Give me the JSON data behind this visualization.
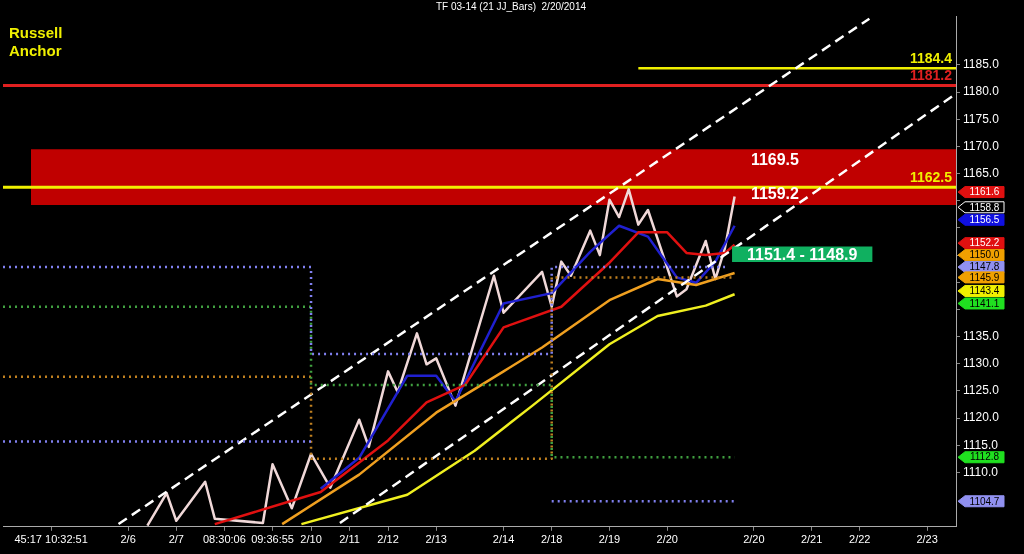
{
  "chart_data": {
    "type": "line",
    "title": "TF 03-14 (21 JJ_Bars)  2/20/2014",
    "marker": "none",
    "grid": false,
    "legend": false,
    "categories": [
      null,
      null,
      null,
      null,
      null,
      "45:17 10:32:51",
      null,
      null,
      null,
      null,
      null,
      null,
      null,
      "2/6",
      null,
      null,
      null,
      null,
      "2/7",
      null,
      null,
      null,
      null,
      "08:30:06",
      null,
      null,
      null,
      null,
      "09:36:55",
      null,
      null,
      null,
      "2/10",
      null,
      null,
      null,
      "2/11",
      null,
      null,
      null,
      "2/12",
      null,
      null,
      null,
      null,
      "2/13",
      null,
      null,
      null,
      null,
      null,
      null,
      "2/14",
      null,
      null,
      null,
      null,
      "2/18",
      null,
      null,
      null,
      null,
      null,
      "2/19",
      null,
      null,
      null,
      null,
      null,
      "2/20",
      null,
      null,
      null,
      null,
      null,
      null,
      null,
      null,
      "2/20",
      null,
      null,
      null,
      null,
      null,
      "2/21",
      null,
      null,
      null,
      null,
      "2/22",
      null,
      null,
      null,
      null,
      null,
      null,
      "2/23",
      null,
      null,
      null
    ],
    "ylim": [
      1100,
      1194
    ],
    "yticks": [
      {
        "value": 1110,
        "label": "1110.0"
      },
      {
        "value": 1115,
        "label": "1115.0"
      },
      {
        "value": 1120,
        "label": "1120.0"
      },
      {
        "value": 1125,
        "label": "1125.0"
      },
      {
        "value": 1130,
        "label": "1130.0"
      },
      {
        "value": 1135,
        "label": "1135.0"
      },
      {
        "value": 1140,
        "label": null
      },
      {
        "value": 1145,
        "label": null
      },
      {
        "value": 1150,
        "label": null
      },
      {
        "value": 1155,
        "label": null
      },
      {
        "value": 1160,
        "label": null
      },
      {
        "value": 1165,
        "label": "1165.0"
      },
      {
        "value": 1170,
        "label": "1170.0"
      },
      {
        "value": 1175,
        "label": "1175.0"
      },
      {
        "value": 1180,
        "label": "1180.0"
      },
      {
        "value": 1185,
        "label": "1185.0"
      }
    ],
    "y2lim": [
      1100,
      1194
    ],
    "y2ticks": [
      1161.6,
      1158.8,
      1156.5,
      1152.2,
      {
        "value": 1150,
        "label": "1150.0"
      },
      1147.8,
      1145.9,
      1143.4,
      1141.1,
      1112.8,
      1104.7
    ],
    "bands": [
      {
        "axis": "y",
        "from": 1159.2,
        "to": 1169.5,
        "color": "#c00000"
      },
      {
        "axis": "y",
        "from": 1148.9,
        "to": 1151.4,
        "label": "1151.4 - 1148.9",
        "color": "#10b060"
      }
    ],
    "ref_lines": [
      {
        "axis": "y",
        "value": 1162.5,
        "label": "1162.5",
        "color": "#f0f000"
      },
      {
        "axis": "y",
        "value": 1181.2,
        "label": "1181.2",
        "color": "#e02020"
      }
    ],
    "series": [
      {
        "type": "step",
        "color": "#8080f0",
        "line_style": "dotted",
        "values": [
          1147.8,
          null,
          null,
          null,
          null,
          null,
          null,
          null,
          null,
          null,
          null,
          null,
          null,
          null,
          null,
          null,
          null,
          null,
          null,
          null,
          null,
          null,
          null,
          null,
          null,
          null,
          null,
          null,
          null,
          null,
          null,
          null,
          1131.8,
          null,
          null,
          null,
          null,
          null,
          null,
          null,
          null,
          null,
          null,
          null,
          null,
          null,
          null,
          null,
          null,
          null,
          null,
          null,
          null,
          null,
          null,
          null,
          null,
          1147.8,
          null,
          null,
          null,
          null,
          null,
          null,
          null,
          null,
          null,
          null,
          null,
          null,
          null,
          null,
          null,
          null,
          null,
          1147.8,
          null,
          null,
          null,
          null,
          null,
          null,
          null,
          null,
          null,
          null,
          null,
          null,
          null,
          null,
          null,
          null,
          null,
          null,
          null,
          null,
          null,
          null,
          null,
          null
        ]
      },
      {
        "type": "step",
        "color": "#8080f0",
        "line_style": "dotted",
        "values": [
          1115.7,
          null,
          null,
          null,
          null,
          null,
          null,
          null,
          null,
          null,
          null,
          null,
          null,
          null,
          null,
          null,
          null,
          null,
          null,
          null,
          null,
          null,
          null,
          null,
          null,
          null,
          null,
          null,
          null,
          null,
          null,
          null,
          1115.7,
          null,
          null,
          null,
          null,
          null,
          null,
          null,
          null,
          null,
          null,
          null,
          null,
          null,
          null,
          null,
          null,
          null,
          null,
          null,
          null,
          null,
          null,
          null,
          null,
          null,
          null,
          null,
          null,
          null,
          null,
          null,
          null,
          null,
          null,
          null,
          null,
          null,
          null,
          null,
          null,
          null,
          null,
          null,
          null,
          null,
          null,
          null,
          null,
          null,
          null,
          null,
          null,
          null,
          null,
          null,
          null,
          null,
          null,
          null,
          null,
          null,
          null,
          null,
          null,
          null,
          null,
          null
        ]
      },
      {
        "type": "step",
        "color": "#8080f0",
        "line_style": "dotted",
        "values": [
          null,
          null,
          null,
          null,
          null,
          null,
          null,
          null,
          null,
          null,
          null,
          null,
          null,
          null,
          null,
          null,
          null,
          null,
          null,
          null,
          null,
          null,
          null,
          null,
          null,
          null,
          null,
          null,
          null,
          null,
          null,
          null,
          null,
          null,
          null,
          null,
          null,
          null,
          null,
          null,
          null,
          null,
          null,
          null,
          null,
          null,
          null,
          null,
          null,
          null,
          null,
          null,
          null,
          null,
          null,
          null,
          null,
          1104.7,
          null,
          null,
          null,
          null,
          null,
          null,
          null,
          null,
          null,
          null,
          null,
          null,
          null,
          null,
          null,
          null,
          null,
          null,
          1104.7,
          null,
          null,
          null,
          null,
          null,
          null,
          null,
          null,
          null,
          null,
          null,
          null,
          null,
          null,
          null,
          null,
          null,
          null,
          null,
          null,
          null,
          null,
          null
        ]
      },
      {
        "type": "step",
        "color": "#40a040",
        "line_style": "dotted",
        "values": [
          1140.5,
          null,
          null,
          null,
          null,
          null,
          null,
          null,
          null,
          null,
          null,
          null,
          null,
          null,
          null,
          null,
          null,
          null,
          null,
          null,
          null,
          null,
          null,
          null,
          null,
          null,
          null,
          null,
          null,
          null,
          null,
          null,
          1126.1,
          null,
          null,
          null,
          null,
          null,
          null,
          null,
          null,
          null,
          null,
          null,
          null,
          null,
          null,
          null,
          null,
          null,
          null,
          null,
          null,
          null,
          null,
          null,
          null,
          1112.8,
          null,
          null,
          null,
          null,
          null,
          null,
          null,
          null,
          null,
          null,
          null,
          null,
          null,
          null,
          null,
          null,
          null,
          null,
          1112.8,
          null,
          null,
          null,
          null,
          null,
          null,
          null,
          null,
          null,
          null,
          null,
          null,
          null,
          null,
          null,
          null,
          null,
          null,
          null,
          null,
          null,
          null,
          null
        ]
      },
      {
        "type": "step",
        "color": "#c08020",
        "line_style": "dotted",
        "values": [
          1127.6,
          null,
          null,
          null,
          null,
          null,
          null,
          null,
          null,
          null,
          null,
          null,
          null,
          null,
          null,
          null,
          null,
          null,
          null,
          null,
          null,
          null,
          null,
          null,
          null,
          null,
          null,
          null,
          null,
          null,
          null,
          null,
          1112.5,
          null,
          null,
          null,
          null,
          null,
          null,
          null,
          null,
          null,
          null,
          null,
          null,
          null,
          null,
          null,
          null,
          null,
          null,
          null,
          null,
          null,
          null,
          null,
          null,
          1145.9,
          null,
          null,
          null,
          null,
          null,
          null,
          null,
          null,
          null,
          null,
          null,
          null,
          null,
          null,
          null,
          null,
          null,
          null,
          1145.9,
          null,
          null,
          null,
          null,
          null,
          null,
          null,
          null,
          null,
          null,
          null,
          null,
          null,
          null,
          null,
          null,
          null,
          null,
          null,
          null,
          null,
          null,
          null
        ]
      },
      {
        "type": "line",
        "color": "#ffffff",
        "line_style": "dashed",
        "values": [
          null,
          null,
          null,
          null,
          null,
          null,
          null,
          null,
          null,
          null,
          null,
          null,
          1100.5,
          null,
          null,
          null,
          null,
          null,
          null,
          null,
          null,
          null,
          null,
          null,
          null,
          null,
          null,
          null,
          null,
          null,
          null,
          null,
          null,
          null,
          null,
          null,
          null,
          null,
          null,
          null,
          null,
          null,
          null,
          null,
          null,
          null,
          null,
          null,
          null,
          null,
          null,
          null,
          null,
          null,
          null,
          null,
          null,
          null,
          null,
          null,
          null,
          null,
          null,
          null,
          null,
          null,
          null,
          null,
          null,
          null,
          null,
          null,
          null,
          null,
          null,
          null,
          null,
          null,
          null,
          null,
          null,
          null,
          null,
          null,
          null,
          null,
          null,
          null,
          null,
          null,
          1193.5,
          null,
          null,
          null,
          null,
          null,
          null,
          null,
          null,
          null
        ]
      },
      {
        "type": "line",
        "color": "#ffffff",
        "line_style": "dashed",
        "values": [
          null,
          null,
          null,
          null,
          null,
          null,
          null,
          null,
          null,
          null,
          null,
          null,
          null,
          null,
          null,
          null,
          null,
          null,
          null,
          null,
          null,
          null,
          null,
          null,
          null,
          null,
          null,
          null,
          null,
          null,
          null,
          null,
          null,
          null,
          null,
          1100.7,
          null,
          null,
          null,
          null,
          null,
          null,
          null,
          null,
          null,
          null,
          null,
          null,
          null,
          null,
          null,
          null,
          null,
          null,
          null,
          null,
          null,
          null,
          null,
          null,
          null,
          null,
          null,
          null,
          null,
          null,
          null,
          null,
          null,
          null,
          null,
          null,
          null,
          null,
          null,
          null,
          null,
          null,
          null,
          null,
          null,
          null,
          null,
          null,
          null,
          null,
          null,
          null,
          null,
          null,
          null,
          null,
          null,
          null,
          null,
          null,
          null,
          null,
          null,
          1179.7
        ]
      },
      {
        "type": "line",
        "color": "#f0f020",
        "values": [
          null,
          null,
          null,
          null,
          null,
          null,
          null,
          null,
          null,
          null,
          null,
          null,
          null,
          null,
          null,
          null,
          null,
          null,
          null,
          null,
          null,
          null,
          null,
          null,
          null,
          null,
          null,
          null,
          null,
          null,
          null,
          1100.5,
          null,
          null,
          null,
          null,
          null,
          null,
          null,
          null,
          null,
          null,
          1105.9,
          null,
          null,
          null,
          null,
          null,
          null,
          1114.0,
          null,
          null,
          null,
          null,
          null,
          1122.3,
          null,
          null,
          null,
          null,
          null,
          null,
          null,
          1133.6,
          null,
          null,
          null,
          null,
          1138.8,
          null,
          null,
          null,
          null,
          1140.7,
          null,
          null,
          1142.8,
          null,
          null,
          null,
          null,
          null,
          null,
          null,
          null,
          null,
          null,
          null,
          null,
          null,
          null,
          null,
          null,
          null,
          null,
          null,
          null,
          null,
          null,
          null
        ]
      },
      {
        "type": "line",
        "color": "#f0a020",
        "values": [
          null,
          null,
          null,
          null,
          null,
          null,
          null,
          null,
          null,
          null,
          null,
          null,
          null,
          null,
          null,
          null,
          null,
          null,
          null,
          null,
          null,
          null,
          null,
          null,
          null,
          null,
          null,
          null,
          null,
          1100.5,
          null,
          null,
          null,
          null,
          null,
          null,
          null,
          1109.6,
          null,
          null,
          null,
          null,
          null,
          null,
          null,
          1121.0,
          null,
          null,
          null,
          null,
          null,
          null,
          1128.6,
          null,
          null,
          null,
          1133.0,
          null,
          null,
          null,
          null,
          null,
          null,
          1141.7,
          null,
          null,
          null,
          null,
          1145.6,
          null,
          null,
          null,
          1144.5,
          null,
          null,
          null,
          1146.7,
          null,
          null,
          null,
          null,
          null,
          null,
          null,
          null,
          null,
          null,
          null,
          null,
          null,
          null,
          null,
          null,
          null,
          null,
          null,
          null,
          null,
          null,
          null
        ]
      },
      {
        "type": "line",
        "color": "#e01010",
        "values": [
          null,
          null,
          null,
          null,
          null,
          null,
          null,
          null,
          null,
          null,
          null,
          null,
          null,
          null,
          null,
          null,
          null,
          null,
          null,
          null,
          null,
          null,
          1100.5,
          null,
          null,
          null,
          null,
          null,
          null,
          null,
          null,
          null,
          null,
          1106.4,
          null,
          null,
          null,
          null,
          null,
          null,
          1115.9,
          null,
          null,
          null,
          1122.9,
          null,
          null,
          null,
          1126.1,
          null,
          null,
          null,
          1136.7,
          null,
          null,
          null,
          null,
          null,
          1140.5,
          null,
          null,
          null,
          null,
          1148.6,
          null,
          null,
          1154.2,
          null,
          null,
          1154.2,
          null,
          1150.4,
          null,
          1150.0,
          null,
          1150.4,
          1151.9,
          null,
          null,
          null,
          null,
          null,
          null,
          null,
          null,
          null,
          null,
          null,
          null,
          null,
          null,
          null,
          null,
          null,
          null,
          null,
          null,
          null,
          null,
          null
        ]
      },
      {
        "type": "line",
        "color": "#2020d0",
        "values": [
          null,
          null,
          null,
          null,
          null,
          null,
          null,
          null,
          null,
          null,
          null,
          null,
          null,
          null,
          null,
          null,
          null,
          null,
          null,
          null,
          null,
          null,
          null,
          null,
          null,
          null,
          null,
          null,
          null,
          null,
          null,
          null,
          null,
          1107.0,
          null,
          null,
          null,
          1112.7,
          null,
          null,
          null,
          null,
          1127.8,
          null,
          null,
          1127.8,
          null,
          1123.1,
          null,
          null,
          null,
          null,
          1141.1,
          null,
          null,
          null,
          null,
          1143.0,
          null,
          null,
          null,
          1150.6,
          null,
          null,
          1155.4,
          null,
          null,
          1153.4,
          null,
          null,
          1145.9,
          null,
          1144.9,
          null,
          1148.8,
          null,
          1155.4,
          null,
          null,
          null,
          null,
          null,
          null,
          null,
          null,
          null,
          null,
          null,
          null,
          null,
          null,
          null,
          null,
          null,
          null,
          null,
          null,
          null,
          null,
          null
        ]
      },
      {
        "type": "line",
        "color": "#f0d8d8",
        "values": [
          null,
          null,
          null,
          null,
          null,
          null,
          null,
          null,
          null,
          null,
          null,
          null,
          null,
          null,
          null,
          1100.2,
          null,
          1106.2,
          1101.1,
          null,
          null,
          1108.3,
          1101.5,
          null,
          null,
          null,
          null,
          1100.7,
          1111.5,
          null,
          1103.4,
          null,
          1113.4,
          null,
          1107.2,
          null,
          null,
          1119.7,
          1114.7,
          null,
          1128.6,
          1124.8,
          null,
          1135.6,
          1129.9,
          1131.0,
          null,
          1122.3,
          null,
          null,
          null,
          1146.2,
          1139.4,
          null,
          null,
          null,
          1146.9,
          1140.5,
          1148.8,
          1146.2,
          null,
          1154.5,
          1150.0,
          1160.2,
          1157.0,
          1162.1,
          1155.6,
          1158.3,
          null,
          null,
          1142.4,
          1143.7,
          null,
          1152.6,
          1145.6,
          1151.3,
          1160.8,
          null,
          null,
          null,
          null,
          null,
          null,
          null,
          null,
          null,
          null,
          null,
          null,
          null,
          null,
          null,
          null,
          null,
          null,
          null,
          null,
          null,
          null,
          null
        ]
      },
      {
        "type": "line",
        "name": "1184.4",
        "color": "#f0f000",
        "values": [
          null,
          null,
          null,
          null,
          null,
          null,
          null,
          null,
          null,
          null,
          null,
          null,
          null,
          null,
          null,
          null,
          null,
          null,
          null,
          null,
          null,
          null,
          null,
          null,
          null,
          null,
          null,
          null,
          null,
          null,
          null,
          null,
          null,
          null,
          null,
          null,
          null,
          null,
          null,
          null,
          null,
          null,
          null,
          null,
          null,
          null,
          null,
          null,
          null,
          null,
          null,
          null,
          null,
          null,
          null,
          null,
          null,
          null,
          null,
          null,
          null,
          null,
          null,
          null,
          null,
          null,
          1184.4,
          null,
          null,
          null,
          null,
          null,
          null,
          null,
          null,
          null,
          null,
          null,
          null,
          null,
          null,
          null,
          null,
          null,
          null,
          null,
          null,
          null,
          null,
          null,
          null,
          null,
          null,
          null,
          null,
          null,
          null,
          null,
          null,
          1184.4
        ]
      }
    ],
    "annotations": [
      "Russell Anchor",
      {
        "text": "1169.5",
        "y": 1169.5
      },
      {
        "text": "1159.2",
        "y": 1159.2
      }
    ]
  }
}
